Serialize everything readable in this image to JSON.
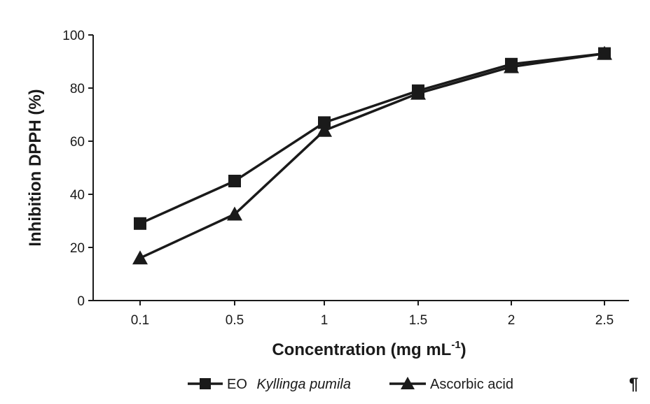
{
  "chart_data": {
    "type": "line",
    "categories": [
      "0.1",
      "0.5",
      "1",
      "1.5",
      "2",
      "2.5"
    ],
    "ylabel": "Inhibition DPPH (%)",
    "xlabel_main": "Concentration (mg mL",
    "xlabel_sup": "-1",
    "xlabel_close": ")",
    "ylim": [
      0,
      100
    ],
    "yticks": [
      "0",
      "20",
      "40",
      "60",
      "80",
      "100"
    ],
    "grid": false,
    "legend_position": "bottom",
    "series": [
      {
        "name_prefix": "EO",
        "name_italic": "Kyllinga pumila",
        "marker": "square",
        "values": [
          29,
          45,
          67,
          79,
          89,
          93
        ]
      },
      {
        "name": "Ascorbic acid",
        "marker": "triangle",
        "values": [
          16,
          32.5,
          64,
          78,
          88,
          93
        ]
      }
    ],
    "line_color": "#1a1a1a"
  },
  "footer": {
    "pilcrow": "¶"
  }
}
